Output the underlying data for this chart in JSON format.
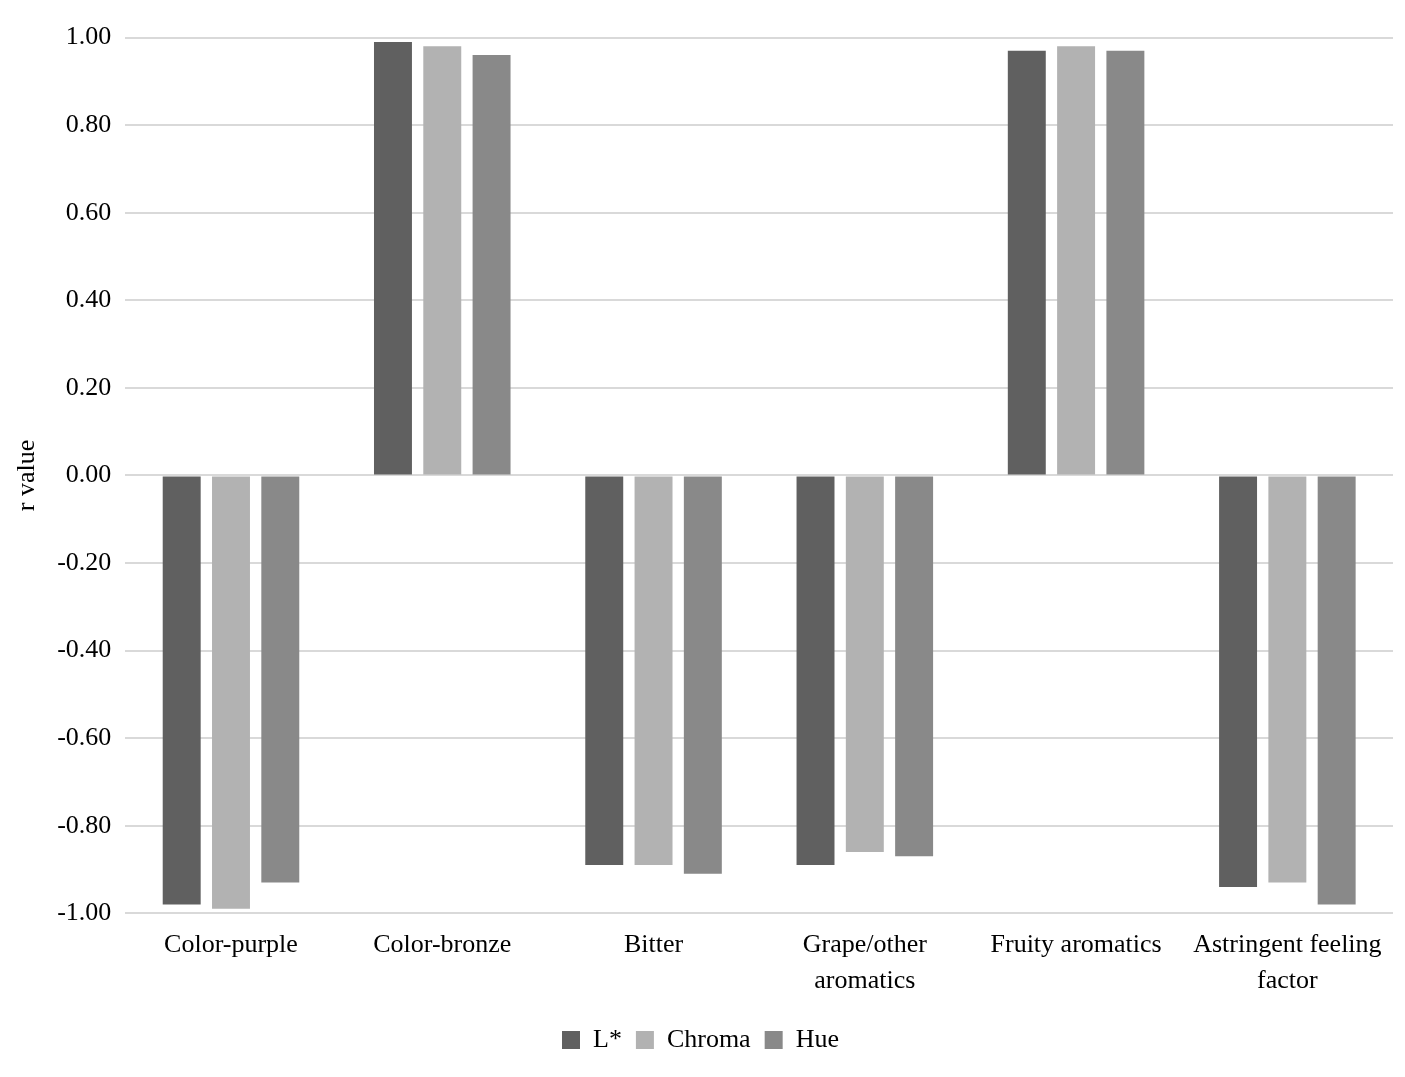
{
  "chart_data": {
    "type": "bar",
    "ylabel": "r value",
    "categories": [
      "Color-purple",
      "Color-bronze",
      "Bitter",
      "Grape/other aromatics",
      "Fruity aromatics",
      "Astringent feeling factor"
    ],
    "series": [
      {
        "name": "L*",
        "color": "#606060",
        "values": [
          -0.98,
          0.99,
          -0.89,
          -0.89,
          0.97,
          -0.94
        ]
      },
      {
        "name": "Chroma",
        "color": "#b2b2b2",
        "values": [
          -0.99,
          0.98,
          -0.89,
          -0.86,
          0.98,
          -0.93
        ]
      },
      {
        "name": "Hue",
        "color": "#898989",
        "values": [
          -0.93,
          0.96,
          -0.91,
          -0.87,
          0.97,
          -0.98
        ]
      }
    ],
    "ylim": [
      -1,
      1
    ],
    "yticks": [
      {
        "value": -1,
        "label": "-1.00"
      },
      {
        "value": -0.8,
        "label": "-0.80"
      },
      {
        "value": -0.6,
        "label": "-0.60"
      },
      {
        "value": -0.4,
        "label": "-0.40"
      },
      {
        "value": -0.2,
        "label": "-0.20"
      },
      {
        "value": 0,
        "label": "0.00"
      },
      {
        "value": 0.2,
        "label": "0.20"
      },
      {
        "value": 0.4,
        "label": "0.40"
      },
      {
        "value": 0.6,
        "label": "0.60"
      },
      {
        "value": 0.8,
        "label": "0.80"
      },
      {
        "value": 1,
        "label": "1.00"
      }
    ],
    "grid": "y",
    "legend": "bottom"
  }
}
